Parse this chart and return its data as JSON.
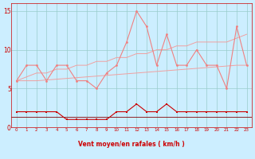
{
  "x": [
    0,
    1,
    2,
    3,
    4,
    5,
    6,
    7,
    8,
    9,
    10,
    11,
    12,
    13,
    14,
    15,
    16,
    17,
    18,
    19,
    20,
    21,
    22,
    23
  ],
  "rafales": [
    6,
    8,
    8,
    6,
    8,
    8,
    6,
    6,
    5,
    7,
    8,
    11,
    15,
    13,
    8,
    12,
    8,
    8,
    10,
    8,
    8,
    5,
    13,
    8
  ],
  "moyen": [
    2,
    2,
    2,
    2,
    2,
    1,
    1,
    1,
    1,
    1,
    2,
    2,
    3,
    2,
    2,
    3,
    2,
    2,
    2,
    2,
    2,
    2,
    2,
    2
  ],
  "trend_upper": [
    6,
    6.5,
    7,
    7,
    7.5,
    7.5,
    8,
    8,
    8.5,
    8.5,
    9,
    9,
    9.5,
    9.5,
    10,
    10,
    10.5,
    10.5,
    11,
    11,
    11,
    11,
    11.5,
    12
  ],
  "trend_lower": [
    6,
    6,
    6,
    6.1,
    6.2,
    6.3,
    6.4,
    6.5,
    6.6,
    6.7,
    6.8,
    6.9,
    7.0,
    7.1,
    7.2,
    7.3,
    7.4,
    7.5,
    7.6,
    7.7,
    7.8,
    7.9,
    8.0,
    8.0
  ],
  "bg_color": "#cceeff",
  "grid_color": "#99cccc",
  "line_color_rafales": "#f08080",
  "line_color_moyen": "#cc0000",
  "line_color_trend": "#f0a0a0",
  "line_color_baseline": "#880000",
  "xlabel": "Vent moyen/en rafales ( km/h )",
  "ylabel_ticks": [
    0,
    5,
    10,
    15
  ],
  "xlim": [
    -0.5,
    23.5
  ],
  "ylim": [
    0,
    16
  ],
  "arrow_rotations": [
    0,
    10,
    15,
    30,
    40,
    45,
    50,
    45,
    40,
    20,
    0,
    0,
    0,
    0,
    0,
    0,
    0,
    0,
    0,
    0,
    0,
    0,
    0,
    0
  ]
}
